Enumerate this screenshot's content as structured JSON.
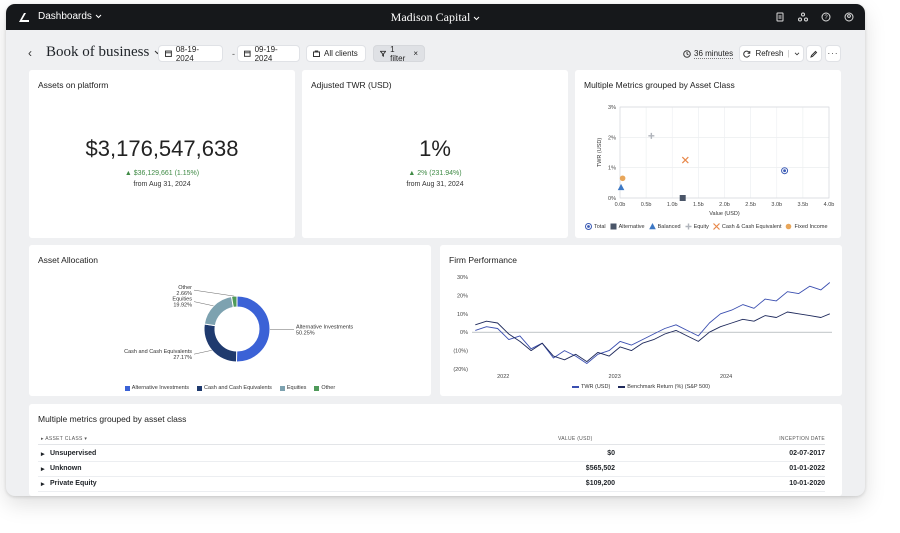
{
  "topbar": {
    "dashboards_label": "Dashboards",
    "center_title": "Madison Capital",
    "icons": [
      "document-icon",
      "network-icon",
      "help-icon",
      "user-icon"
    ]
  },
  "toolbar": {
    "page_title": "Book of business",
    "start_date": "08-19-2024",
    "date_separator": "-",
    "end_date": "09-19-2024",
    "clients_label": "All clients",
    "filter_label": "1 filter",
    "refresh_interval": "36 minutes",
    "refresh_label": "Refresh"
  },
  "cards": {
    "assets": {
      "title": "Assets on platform",
      "value": "$3,176,547,638",
      "delta": "▲ $36,129,661 (1.15%)",
      "from": "from Aug 31, 2024"
    },
    "twr": {
      "title": "Adjusted TWR (USD)",
      "value": "1%",
      "delta": "▲ 2% (231.94%)",
      "from": "from Aug 31, 2024"
    },
    "scatter": {
      "title": "Multiple Metrics grouped by Asset Class"
    },
    "allocation": {
      "title": "Asset Allocation"
    },
    "performance": {
      "title": "Firm Performance"
    }
  },
  "chart_data": [
    {
      "type": "scatter",
      "title": "Multiple Metrics grouped by Asset Class",
      "xlabel": "Value (USD)",
      "ylabel": "TWR (USD)",
      "xlim": [
        0,
        4.0
      ],
      "ylim": [
        0,
        3
      ],
      "x_ticks": [
        "0.0b",
        "0.5b",
        "1.0b",
        "1.5b",
        "2.0b",
        "2.5b",
        "3.0b",
        "3.5b",
        "4.0b"
      ],
      "y_ticks": [
        "0%",
        "1%",
        "2%",
        "3%"
      ],
      "grid": true,
      "legend_position": "bottom",
      "series": [
        {
          "name": "Total",
          "x": 3.15,
          "y": 0.9,
          "color": "#3b5bb5",
          "marker": "target"
        },
        {
          "name": "Alternative",
          "x": 1.2,
          "y": 0.0,
          "color": "#4a5568",
          "marker": "square"
        },
        {
          "name": "Balanced",
          "x": 0.02,
          "y": 0.35,
          "color": "#3d78c4",
          "marker": "triangle"
        },
        {
          "name": "Equity",
          "x": 0.6,
          "y": 2.05,
          "color": "#b0b4bb",
          "marker": "plus"
        },
        {
          "name": "Cash & Cash Equivalent",
          "x": 1.25,
          "y": 1.25,
          "color": "#e8884a",
          "marker": "x"
        },
        {
          "name": "Fixed Income",
          "x": 0.05,
          "y": 0.65,
          "color": "#e8a65a",
          "marker": "circle"
        }
      ]
    },
    {
      "type": "pie",
      "title": "Asset Allocation",
      "donut": true,
      "legend_position": "bottom",
      "slices": [
        {
          "label": "Alternative Investments",
          "value": 50.25,
          "display": "50.25%",
          "color": "#3b62d6"
        },
        {
          "label": "Cash and Cash Equivalents",
          "value": 27.17,
          "display": "27.17%",
          "color": "#1f3a6e"
        },
        {
          "label": "Equities",
          "value": 19.92,
          "display": "19.92%",
          "color": "#7da2b0"
        },
        {
          "label": "Other",
          "value": 2.66,
          "display": "2.66%",
          "color": "#4f9a5a"
        }
      ]
    },
    {
      "type": "line",
      "title": "Firm Performance",
      "x_ticks": [
        "2022",
        "2023",
        "2024"
      ],
      "y_ticks": [
        "30%",
        "20%",
        "10%",
        "0%",
        "(10%)",
        "(20%)"
      ],
      "ylim": [
        -20,
        30
      ],
      "legend_position": "bottom",
      "series": [
        {
          "name": "TWR (USD)",
          "color": "#3b4fb0",
          "points": [
            [
              2021.75,
              1
            ],
            [
              2021.85,
              3
            ],
            [
              2021.95,
              2
            ],
            [
              2022.05,
              -4
            ],
            [
              2022.15,
              -2
            ],
            [
              2022.25,
              -9
            ],
            [
              2022.35,
              -6
            ],
            [
              2022.45,
              -14
            ],
            [
              2022.55,
              -10
            ],
            [
              2022.65,
              -13
            ],
            [
              2022.75,
              -17
            ],
            [
              2022.85,
              -12
            ],
            [
              2022.95,
              -10
            ],
            [
              2023.05,
              -5
            ],
            [
              2023.15,
              -7
            ],
            [
              2023.25,
              -4
            ],
            [
              2023.35,
              -1
            ],
            [
              2023.45,
              2
            ],
            [
              2023.55,
              4
            ],
            [
              2023.65,
              1
            ],
            [
              2023.75,
              -2
            ],
            [
              2023.85,
              5
            ],
            [
              2023.95,
              10
            ],
            [
              2024.05,
              12
            ],
            [
              2024.15,
              15
            ],
            [
              2024.25,
              13
            ],
            [
              2024.35,
              18
            ],
            [
              2024.45,
              17
            ],
            [
              2024.55,
              22
            ],
            [
              2024.65,
              21
            ],
            [
              2024.75,
              25
            ],
            [
              2024.85,
              23
            ],
            [
              2024.93,
              27
            ]
          ]
        },
        {
          "name": "Benchmark Return (%) (S&P 500)",
          "color": "#1f2a5c",
          "points": [
            [
              2021.75,
              4
            ],
            [
              2021.85,
              6
            ],
            [
              2021.95,
              5
            ],
            [
              2022.05,
              -1
            ],
            [
              2022.15,
              -5
            ],
            [
              2022.25,
              -10
            ],
            [
              2022.35,
              -6
            ],
            [
              2022.45,
              -13
            ],
            [
              2022.55,
              -15
            ],
            [
              2022.65,
              -12
            ],
            [
              2022.75,
              -16
            ],
            [
              2022.85,
              -11
            ],
            [
              2022.95,
              -13
            ],
            [
              2023.05,
              -8
            ],
            [
              2023.15,
              -10
            ],
            [
              2023.25,
              -6
            ],
            [
              2023.35,
              -4
            ],
            [
              2023.45,
              -1
            ],
            [
              2023.55,
              1
            ],
            [
              2023.65,
              -2
            ],
            [
              2023.75,
              -5
            ],
            [
              2023.85,
              0
            ],
            [
              2023.95,
              3
            ],
            [
              2024.05,
              5
            ],
            [
              2024.15,
              7
            ],
            [
              2024.25,
              6
            ],
            [
              2024.35,
              9
            ],
            [
              2024.45,
              8
            ],
            [
              2024.55,
              11
            ],
            [
              2024.65,
              10
            ],
            [
              2024.75,
              9
            ],
            [
              2024.85,
              8
            ],
            [
              2024.93,
              10
            ]
          ]
        }
      ]
    }
  ],
  "table": {
    "title": "Multiple metrics grouped by asset class",
    "headers": {
      "asset_class": "ASSET CLASS",
      "value": "VALUE (USD)",
      "inception": "INCEPTION DATE"
    },
    "rows": [
      {
        "name": "Unsupervised",
        "value": "$0",
        "inception": "02-07-2017"
      },
      {
        "name": "Unknown",
        "value": "$565,502",
        "inception": "01-01-2022"
      },
      {
        "name": "Private Equity",
        "value": "$109,200",
        "inception": "10-01-2020"
      }
    ]
  }
}
